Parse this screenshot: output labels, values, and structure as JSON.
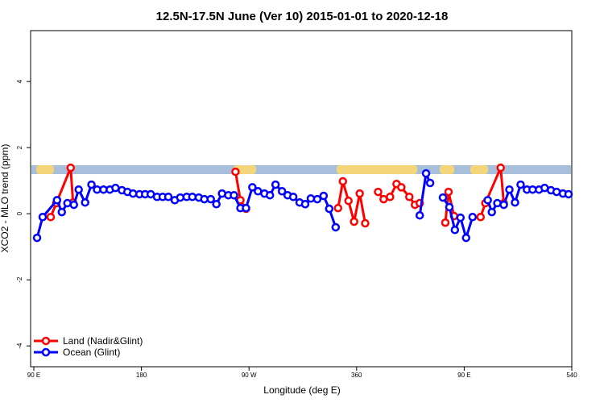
{
  "chart_data": {
    "type": "line",
    "title": "12.5N-17.5N June (Ver 10)   2015-01-01 to 2020-12-18",
    "x_label": "Longitude (deg E)",
    "y_label": "XCO2 - MLO trend (ppm)",
    "xlim": [
      87.3,
      540
    ],
    "ylim": [
      -4.63,
      5.54
    ],
    "xticks": [
      {
        "value": 90,
        "label": "90 E"
      },
      180,
      {
        "value": 270,
        "label": "90 W"
      },
      360,
      {
        "value": 450,
        "label": "90 E"
      },
      540
    ],
    "yticks": [
      4,
      2,
      0,
      -2,
      -4
    ],
    "legend": "bottom-left",
    "series": [
      {
        "name": "Land (Nadir&Glint)",
        "color": "#ff0000",
        "x": [
          104.1,
          108.8,
          120.8,
          122.8,
          null,
          258.7,
          262.8,
          267.5,
          null,
          344.5,
          348.5,
          353.2,
          357.9,
          362.6,
          367.2,
          null,
          378,
          382.6,
          388,
          393.4,
          397.4,
          404.1,
          408.8,
          412.8,
          null,
          434.2,
          436.9,
          441.5,
          null,
          463.7,
          467.7,
          480.5,
          483.1
        ],
        "values": [
          -0.1,
          0.32,
          1.39,
          0.34,
          null,
          1.27,
          0.41,
          0.15,
          null,
          0.17,
          0.98,
          0.39,
          -0.24,
          0.61,
          -0.29,
          null,
          0.66,
          0.44,
          0.51,
          0.9,
          0.8,
          0.51,
          0.27,
          0.32,
          null,
          -0.27,
          0.66,
          -0.07,
          null,
          -0.1,
          0.32,
          1.39,
          0.32
        ]
      },
      {
        "name": "Ocean (Glint)",
        "color": "#0000ff",
        "x": [
          92.7,
          97.4,
          109.4,
          113.4,
          118.1,
          123.5,
          127.5,
          132.9,
          138.2,
          142.9,
          148.3,
          153.6,
          158.3,
          163.7,
          168.3,
          173,
          178.4,
          183.1,
          187.8,
          193.1,
          197.8,
          202.5,
          207.9,
          212.5,
          217.9,
          222.6,
          228,
          232.6,
          238,
          242.7,
          247.4,
          252.7,
          257.4,
          262.8,
          267.5,
          272.8,
          277.5,
          282.9,
          287.5,
          292.2,
          297.6,
          302.3,
          307,
          312.3,
          317,
          321.7,
          327.1,
          332.4,
          337.1,
          342.5,
          null,
          412.8,
          418.1,
          421.5,
          null,
          432.2,
          437.6,
          442.2,
          446.9,
          451.6,
          457,
          null,
          469.7,
          473.1,
          477.7,
          483.1,
          487.8,
          492.5,
          497.2,
          502.5,
          507.2,
          512.6,
          517.3,
          522.6,
          527.3,
          532.6,
          537.3
        ],
        "values": [
          -0.73,
          -0.1,
          0.41,
          0.05,
          0.32,
          0.27,
          0.73,
          0.34,
          0.88,
          0.73,
          0.73,
          0.73,
          0.78,
          0.71,
          0.66,
          0.61,
          0.59,
          0.59,
          0.59,
          0.51,
          0.51,
          0.51,
          0.41,
          0.49,
          0.51,
          0.51,
          0.49,
          0.44,
          0.44,
          0.29,
          0.61,
          0.56,
          0.56,
          0.17,
          0.17,
          0.8,
          0.68,
          0.61,
          0.56,
          0.88,
          0.68,
          0.56,
          0.51,
          0.34,
          0.29,
          0.46,
          0.44,
          0.54,
          0.15,
          -0.41,
          null,
          -0.05,
          1.22,
          0.93,
          null,
          0.49,
          0.2,
          -0.49,
          -0.12,
          -0.73,
          -0.1,
          null,
          0.41,
          0.05,
          0.32,
          0.27,
          0.73,
          0.34,
          0.88,
          0.73,
          0.73,
          0.73,
          0.78,
          0.71,
          0.66,
          0.61,
          0.59
        ]
      }
    ]
  }
}
